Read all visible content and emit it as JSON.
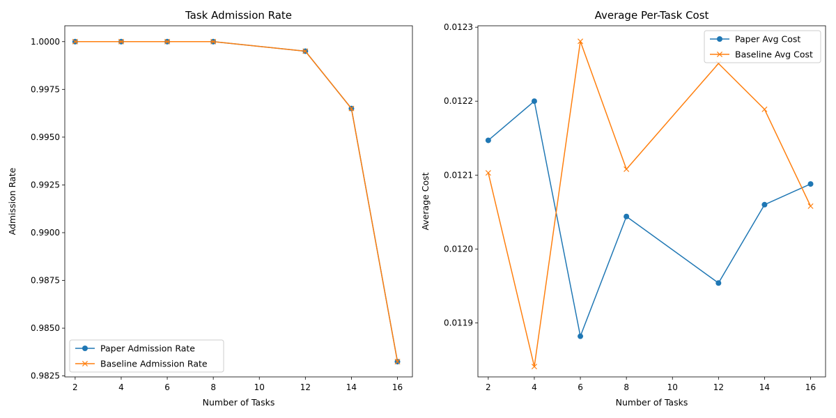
{
  "chart_data": [
    {
      "type": "line",
      "title": "Task Admission Rate",
      "xlabel": "Number of Tasks",
      "ylabel": "Admission Rate",
      "x": [
        2,
        4,
        6,
        8,
        12,
        14,
        16
      ],
      "xlim": [
        1.55,
        16.65
      ],
      "ylim": [
        0.98245,
        1.00083
      ],
      "xticks": [
        2,
        4,
        6,
        8,
        10,
        12,
        14,
        16
      ],
      "yticks": [
        0.9825,
        0.985,
        0.9875,
        0.99,
        0.9925,
        0.995,
        0.9975,
        1.0
      ],
      "ytick_labels": [
        "0.9825",
        "0.9850",
        "0.9875",
        "0.9900",
        "0.9925",
        "0.9950",
        "0.9975",
        "1.0000"
      ],
      "legend": "lower-left",
      "grid": false,
      "series": [
        {
          "name": "Paper Admission Rate",
          "marker": "circle",
          "color": "#1f77b4",
          "values": [
            1.0,
            1.0,
            1.0,
            1.0,
            0.9995,
            0.9965,
            0.98325
          ]
        },
        {
          "name": "Baseline Admission Rate",
          "marker": "x",
          "color": "#ff7f0e",
          "values": [
            1.0,
            1.0,
            1.0,
            1.0,
            0.9995,
            0.9965,
            0.98325
          ]
        }
      ]
    },
    {
      "type": "line",
      "title": "Average Per-Task Cost",
      "xlabel": "Number of Tasks",
      "ylabel": "Average Cost",
      "x": [
        2,
        4,
        6,
        8,
        12,
        14,
        16
      ],
      "xlim": [
        1.55,
        16.65
      ],
      "ylim": [
        0.011827,
        0.012302
      ],
      "xticks": [
        2,
        4,
        6,
        8,
        10,
        12,
        14,
        16
      ],
      "yticks": [
        0.0119,
        0.012,
        0.0121,
        0.0122,
        0.0123
      ],
      "ytick_labels": [
        "0.0119",
        "0.0120",
        "0.0121",
        "0.0122",
        "0.0123"
      ],
      "legend": "upper-right",
      "grid": false,
      "series": [
        {
          "name": "Paper Avg Cost",
          "marker": "circle",
          "color": "#1f77b4",
          "values": [
            0.012147,
            0.0122,
            0.011882,
            0.012044,
            0.011954,
            0.01206,
            0.012088
          ]
        },
        {
          "name": "Baseline Avg Cost",
          "marker": "x",
          "color": "#ff7f0e",
          "values": [
            0.012103,
            0.011841,
            0.012281,
            0.012108,
            0.012251,
            0.012189,
            0.012058
          ]
        }
      ]
    }
  ]
}
